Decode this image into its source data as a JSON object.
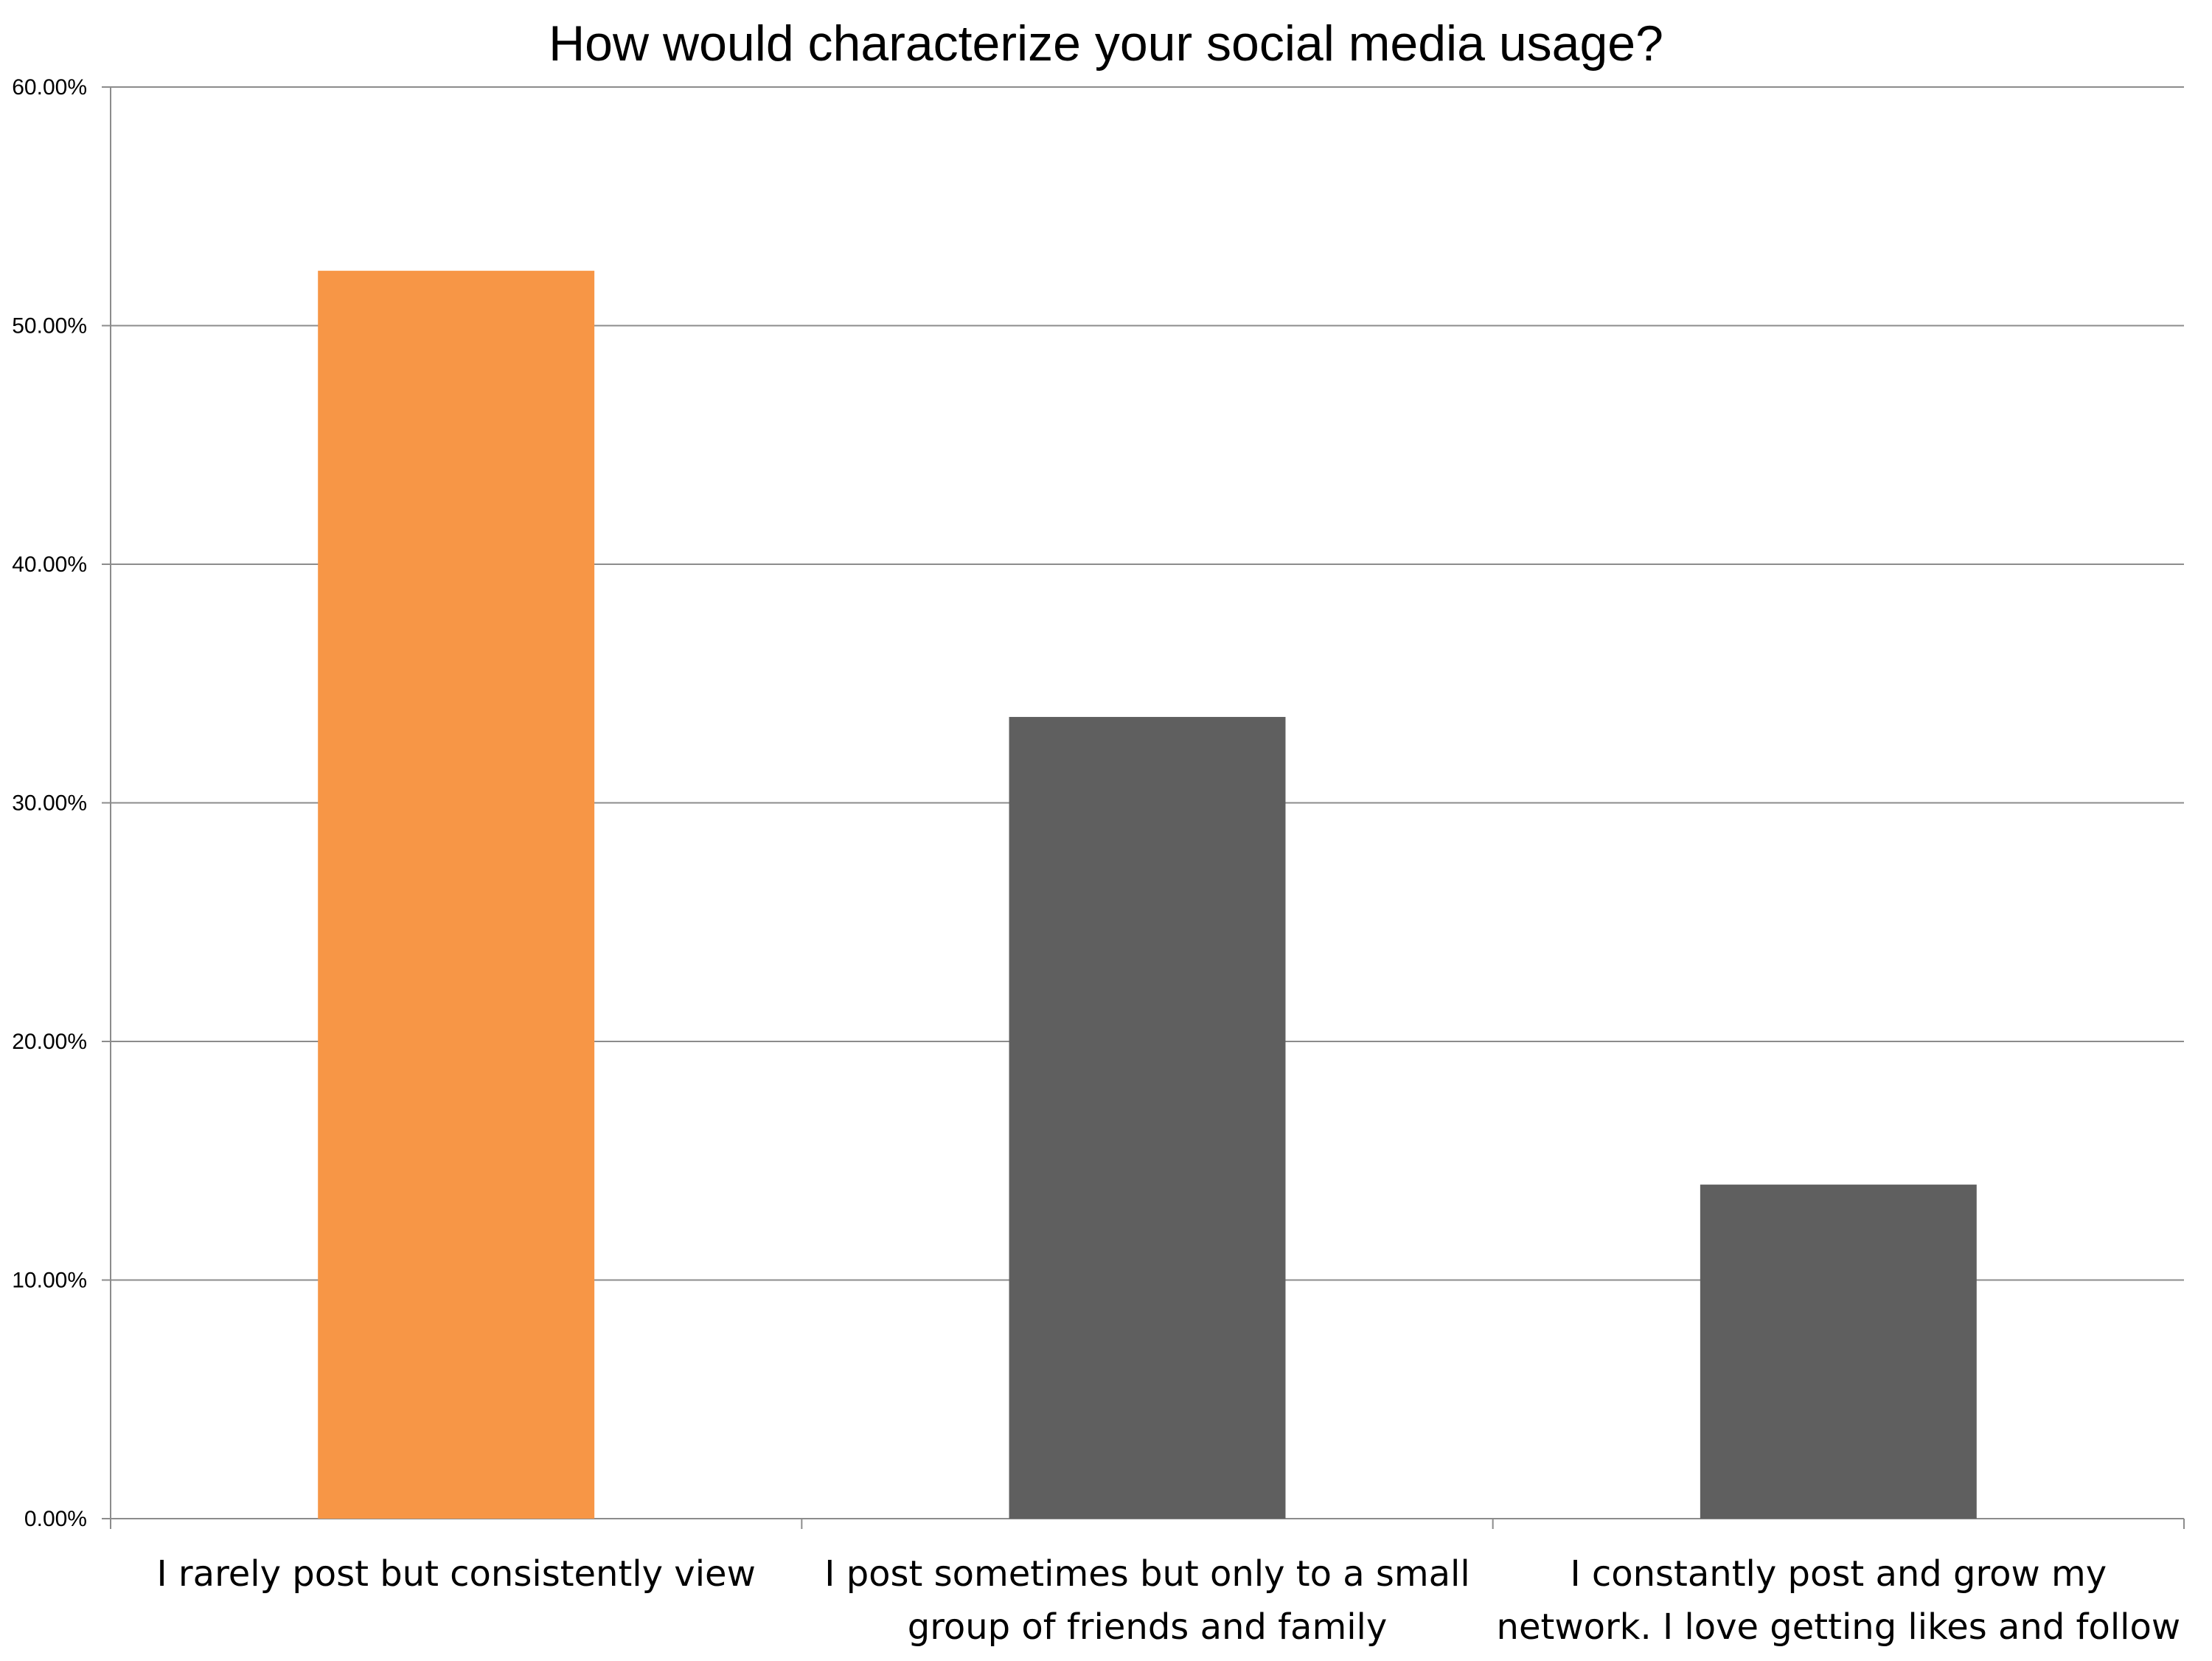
{
  "chart_data": {
    "type": "bar",
    "title": "How would characterize your social media usage?",
    "xlabel": "",
    "ylabel": "",
    "categories": [
      [
        "I rarely post but consistently view"
      ],
      [
        "I post sometimes but only to a small",
        "group of friends and family"
      ],
      [
        "I constantly post and grow my",
        "network. I love getting likes and follow"
      ]
    ],
    "values": [
      52.3,
      33.6,
      14.0
    ],
    "ylim": [
      0,
      60
    ],
    "yticks": [
      0,
      10,
      20,
      30,
      40,
      50,
      60
    ],
    "ytick_labels": [
      "0.00%",
      "10.00%",
      "20.00%",
      "30.00%",
      "40.00%",
      "50.00%",
      "60.00%"
    ],
    "grid": true,
    "legend": "none",
    "colors": {
      "highlight": "#F79646",
      "default": "#5F5F5F",
      "grid": "#8C8C8C",
      "axis": "#8C8C8C"
    },
    "highlight_index": 0
  }
}
